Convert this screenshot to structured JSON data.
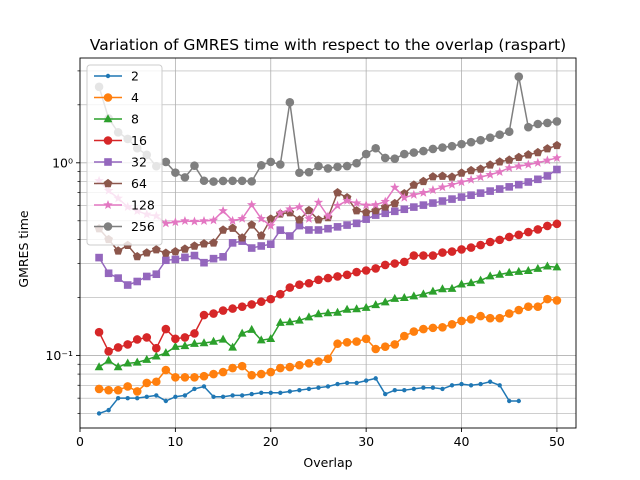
{
  "chart_data": {
    "type": "line",
    "title": "Variation of GMRES time with respect to the overlap (raspart)",
    "xlabel": "Overlap",
    "ylabel": "GMRES time",
    "xlim": [
      0,
      52
    ],
    "ylim": [
      0.042,
      3.5
    ],
    "yscale": "log",
    "grid": true,
    "legend": "top-left",
    "x_ticks": [
      0,
      10,
      20,
      30,
      40,
      50
    ],
    "y_ticks": [
      0.1,
      1.0
    ],
    "y_tick_labels": [
      "10⁻¹",
      "10⁰"
    ],
    "series": [
      {
        "name": "2",
        "color": "#1f77b4",
        "marker": "dot",
        "x": [
          2,
          3,
          4,
          5,
          6,
          7,
          8,
          9,
          10,
          11,
          12,
          13,
          14,
          15,
          16,
          17,
          18,
          19,
          20,
          21,
          22,
          23,
          24,
          25,
          26,
          27,
          28,
          29,
          30,
          31,
          32,
          33,
          34,
          35,
          36,
          37,
          38,
          39,
          40,
          41,
          42,
          43,
          44,
          45,
          46
        ],
        "values": [
          0.05,
          0.052,
          0.06,
          0.06,
          0.06,
          0.061,
          0.062,
          0.058,
          0.061,
          0.062,
          0.067,
          0.069,
          0.061,
          0.061,
          0.062,
          0.062,
          0.063,
          0.064,
          0.064,
          0.064,
          0.065,
          0.066,
          0.067,
          0.068,
          0.069,
          0.071,
          0.072,
          0.072,
          0.074,
          0.076,
          0.063,
          0.066,
          0.066,
          0.067,
          0.068,
          0.068,
          0.067,
          0.07,
          0.071,
          0.07,
          0.071,
          0.073,
          0.07,
          0.058,
          0.058
        ]
      },
      {
        "name": "4",
        "color": "#ff7f0e",
        "marker": "circle",
        "x": [
          2,
          3,
          4,
          5,
          6,
          7,
          8,
          9,
          10,
          11,
          12,
          13,
          14,
          15,
          16,
          17,
          18,
          19,
          20,
          21,
          22,
          23,
          24,
          25,
          26,
          27,
          28,
          29,
          30,
          31,
          32,
          33,
          34,
          35,
          36,
          37,
          38,
          39,
          40,
          41,
          42,
          43,
          44,
          45,
          46,
          47,
          48,
          49,
          50
        ],
        "values": [
          0.067,
          0.066,
          0.066,
          0.069,
          0.065,
          0.072,
          0.073,
          0.084,
          0.077,
          0.077,
          0.077,
          0.078,
          0.08,
          0.082,
          0.086,
          0.088,
          0.079,
          0.08,
          0.082,
          0.086,
          0.087,
          0.089,
          0.091,
          0.093,
          0.096,
          0.115,
          0.117,
          0.118,
          0.122,
          0.108,
          0.111,
          0.114,
          0.126,
          0.133,
          0.137,
          0.139,
          0.14,
          0.145,
          0.151,
          0.154,
          0.16,
          0.156,
          0.156,
          0.165,
          0.172,
          0.179,
          0.179,
          0.196,
          0.193
        ]
      },
      {
        "name": "8",
        "color": "#2ca02c",
        "marker": "triangle",
        "x": [
          2,
          3,
          4,
          5,
          6,
          7,
          8,
          9,
          10,
          11,
          12,
          13,
          14,
          15,
          16,
          17,
          18,
          19,
          20,
          21,
          22,
          23,
          24,
          25,
          26,
          27,
          28,
          29,
          30,
          31,
          32,
          33,
          34,
          35,
          36,
          37,
          38,
          39,
          40,
          41,
          42,
          43,
          44,
          45,
          46,
          47,
          48,
          49,
          50
        ],
        "values": [
          0.087,
          0.094,
          0.087,
          0.091,
          0.092,
          0.095,
          0.099,
          0.103,
          0.111,
          0.112,
          0.115,
          0.116,
          0.118,
          0.121,
          0.11,
          0.13,
          0.136,
          0.12,
          0.122,
          0.148,
          0.149,
          0.152,
          0.158,
          0.164,
          0.166,
          0.167,
          0.173,
          0.174,
          0.177,
          0.183,
          0.189,
          0.197,
          0.199,
          0.203,
          0.208,
          0.215,
          0.221,
          0.222,
          0.234,
          0.238,
          0.245,
          0.258,
          0.263,
          0.269,
          0.272,
          0.275,
          0.282,
          0.29,
          0.287
        ]
      },
      {
        "name": "16",
        "color": "#d62728",
        "marker": "circle",
        "x": [
          2,
          3,
          4,
          5,
          6,
          7,
          8,
          9,
          10,
          11,
          12,
          13,
          14,
          15,
          16,
          17,
          18,
          19,
          20,
          21,
          22,
          23,
          24,
          25,
          26,
          27,
          28,
          29,
          30,
          31,
          32,
          33,
          34,
          35,
          36,
          37,
          38,
          39,
          40,
          41,
          42,
          43,
          44,
          45,
          46,
          47,
          48,
          49,
          50
        ],
        "values": [
          0.132,
          0.105,
          0.11,
          0.114,
          0.121,
          0.124,
          0.109,
          0.137,
          0.122,
          0.124,
          0.13,
          0.162,
          0.165,
          0.171,
          0.175,
          0.179,
          0.184,
          0.19,
          0.196,
          0.208,
          0.225,
          0.233,
          0.237,
          0.247,
          0.252,
          0.257,
          0.262,
          0.271,
          0.276,
          0.283,
          0.295,
          0.3,
          0.306,
          0.33,
          0.33,
          0.33,
          0.342,
          0.346,
          0.355,
          0.363,
          0.374,
          0.388,
          0.398,
          0.412,
          0.423,
          0.437,
          0.451,
          0.47,
          0.482
        ]
      },
      {
        "name": "32",
        "color": "#9467bd",
        "marker": "square",
        "x": [
          2,
          3,
          4,
          5,
          6,
          7,
          8,
          9,
          10,
          11,
          12,
          13,
          14,
          15,
          16,
          17,
          18,
          19,
          20,
          21,
          22,
          23,
          24,
          25,
          26,
          27,
          28,
          29,
          30,
          31,
          32,
          33,
          34,
          35,
          36,
          37,
          38,
          39,
          40,
          41,
          42,
          43,
          44,
          45,
          46,
          47,
          48,
          49,
          50
        ],
        "values": [
          0.322,
          0.267,
          0.252,
          0.232,
          0.242,
          0.257,
          0.264,
          0.312,
          0.315,
          0.323,
          0.33,
          0.303,
          0.318,
          0.325,
          0.384,
          0.392,
          0.361,
          0.37,
          0.378,
          0.447,
          0.417,
          0.472,
          0.448,
          0.448,
          0.455,
          0.465,
          0.475,
          0.485,
          0.51,
          0.535,
          0.547,
          0.56,
          0.574,
          0.589,
          0.603,
          0.618,
          0.633,
          0.648,
          0.664,
          0.679,
          0.696,
          0.713,
          0.731,
          0.75,
          0.77,
          0.795,
          0.821,
          0.855,
          0.923
        ]
      },
      {
        "name": "64",
        "color": "#8c564b",
        "marker": "pentagon",
        "x": [
          2,
          3,
          4,
          5,
          6,
          7,
          8,
          9,
          10,
          11,
          12,
          13,
          14,
          15,
          16,
          17,
          18,
          19,
          20,
          21,
          22,
          23,
          24,
          25,
          26,
          27,
          28,
          29,
          30,
          31,
          32,
          33,
          34,
          35,
          36,
          37,
          38,
          39,
          40,
          41,
          42,
          43,
          44,
          45,
          46,
          47,
          48,
          49,
          50
        ],
        "values": [
          0.455,
          0.4,
          0.349,
          0.373,
          0.326,
          0.341,
          0.354,
          0.34,
          0.346,
          0.357,
          0.37,
          0.38,
          0.384,
          0.448,
          0.458,
          0.408,
          0.476,
          0.418,
          0.511,
          0.543,
          0.551,
          0.506,
          0.566,
          0.506,
          0.52,
          0.7,
          0.66,
          0.564,
          0.553,
          0.565,
          0.59,
          0.615,
          0.692,
          0.767,
          0.801,
          0.847,
          0.853,
          0.844,
          0.885,
          0.912,
          0.928,
          0.975,
          1.012,
          1.034,
          1.068,
          1.101,
          1.131,
          1.184,
          1.231
        ]
      },
      {
        "name": "128",
        "color": "#e377c2",
        "marker": "star",
        "x": [
          2,
          3,
          4,
          5,
          6,
          7,
          8,
          9,
          10,
          11,
          12,
          13,
          14,
          15,
          16,
          17,
          18,
          19,
          20,
          21,
          22,
          23,
          24,
          25,
          26,
          27,
          28,
          29,
          30,
          31,
          32,
          33,
          34,
          35,
          36,
          37,
          38,
          39,
          40,
          41,
          42,
          43,
          44,
          45,
          46,
          47,
          48,
          49,
          50
        ],
        "values": [
          0.806,
          0.717,
          0.654,
          0.59,
          0.562,
          0.54,
          0.53,
          0.485,
          0.492,
          0.499,
          0.496,
          0.499,
          0.503,
          0.563,
          0.5,
          0.513,
          0.605,
          0.513,
          0.471,
          0.548,
          0.575,
          0.59,
          0.512,
          0.623,
          0.527,
          0.599,
          0.636,
          0.618,
          0.602,
          0.605,
          0.629,
          0.745,
          0.659,
          0.682,
          0.699,
          0.722,
          0.747,
          0.77,
          0.794,
          0.817,
          0.843,
          0.868,
          0.896,
          0.941,
          0.96,
          0.979,
          1.0,
          1.03,
          1.06
        ]
      },
      {
        "name": "256",
        "color": "#7f7f7f",
        "marker": "circle",
        "x": [
          2,
          3,
          4,
          5,
          6,
          7,
          8,
          9,
          10,
          11,
          12,
          13,
          14,
          15,
          16,
          17,
          18,
          19,
          20,
          21,
          22,
          23,
          24,
          25,
          26,
          27,
          28,
          29,
          30,
          31,
          32,
          33,
          34,
          35,
          36,
          37,
          38,
          39,
          40,
          41,
          42,
          43,
          44,
          45,
          46,
          47,
          48,
          49,
          50
        ],
        "values": [
          2.48,
          1.7,
          1.44,
          1.33,
          1.19,
          1.1,
          0.96,
          1.01,
          0.889,
          0.84,
          0.966,
          0.807,
          0.799,
          0.805,
          0.806,
          0.806,
          0.801,
          0.97,
          1.011,
          0.98,
          2.06,
          0.888,
          0.894,
          0.962,
          0.935,
          0.953,
          0.962,
          0.995,
          1.11,
          1.19,
          1.06,
          1.05,
          1.11,
          1.13,
          1.15,
          1.18,
          1.2,
          1.22,
          1.25,
          1.28,
          1.31,
          1.35,
          1.4,
          1.45,
          2.8,
          1.53,
          1.59,
          1.61,
          1.64
        ]
      }
    ]
  }
}
